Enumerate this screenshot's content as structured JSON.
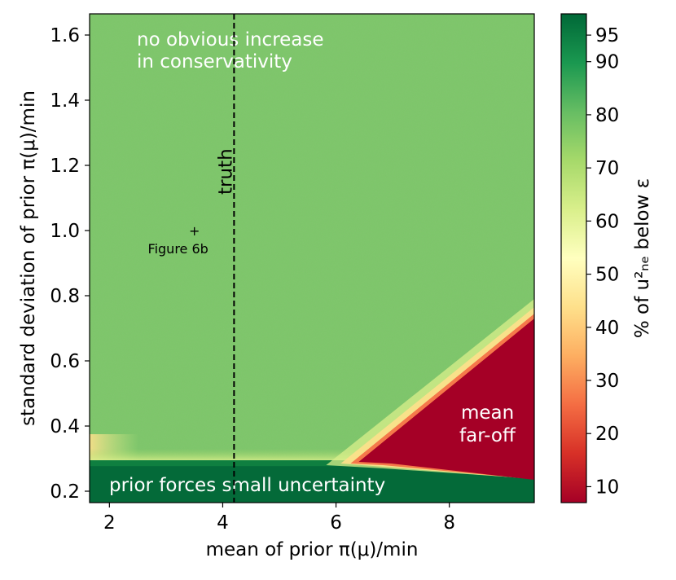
{
  "chart_data": {
    "type": "heatmap",
    "title": "",
    "xlabel": "mean of prior π(μ)/min",
    "ylabel": "standard deviation of prior π(μ)/min",
    "xlim": [
      1.65,
      9.5
    ],
    "ylim": [
      0.165,
      1.665
    ],
    "x_ticks": [
      2,
      4,
      6,
      8
    ],
    "y_ticks": [
      0.2,
      0.4,
      0.6,
      0.8,
      1.0,
      1.2,
      1.4,
      1.6
    ],
    "x_tick_labels": [
      "2",
      "4",
      "6",
      "8"
    ],
    "y_tick_labels": [
      "0.2",
      "0.4",
      "0.6",
      "0.8",
      "1.0",
      "1.2",
      "1.4",
      "1.6"
    ],
    "colorbar": {
      "label": "% of u²ₙₑ below ε",
      "colormap": "RdYlGn",
      "range": [
        7,
        99
      ],
      "ticks": [
        10,
        20,
        30,
        40,
        50,
        60,
        70,
        80,
        90,
        95
      ],
      "tick_labels": [
        "10",
        "20",
        "30",
        "40",
        "50",
        "60",
        "70",
        "80",
        "90",
        "95"
      ]
    },
    "truth_line": {
      "x": 4.2,
      "label": "truth"
    },
    "marker": {
      "x": 3.5,
      "y": 1.0,
      "symbol": "+",
      "label": "Figure 6b"
    },
    "regions": [
      {
        "name": "background",
        "value": 87
      },
      {
        "name": "bottom band",
        "y_range": [
          0.165,
          0.295
        ],
        "value": 99
      },
      {
        "name": "bottom band edge",
        "y": 0.3,
        "value": 68
      },
      {
        "name": "far-off wedge",
        "apex": [
          6.4,
          0.29
        ],
        "x_end": 9.5,
        "y_top_end": 0.73,
        "value": 8
      }
    ],
    "annotations": [
      {
        "text": "no obvious increase",
        "color": "white"
      },
      {
        "text": "in conservativity",
        "color": "white"
      },
      {
        "text": "prior forces small uncertainty",
        "color": "white"
      },
      {
        "text": "mean",
        "color": "white"
      },
      {
        "text": "far-off",
        "color": "white"
      }
    ]
  }
}
